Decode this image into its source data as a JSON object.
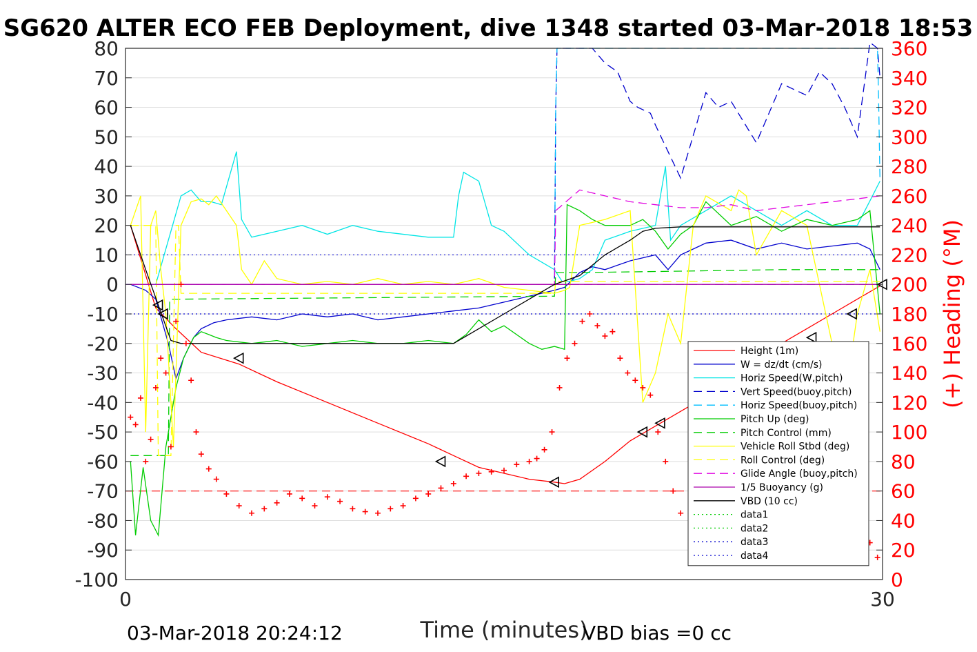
{
  "colors": {
    "height": "#ff0000",
    "w": "#0000cd",
    "horiz": "#00e5e5",
    "vert_buoy": "#0000cd",
    "horiz_buoy": "#00bfff",
    "pitch": "#00cc00",
    "pitch_ctrl": "#00cc00",
    "roll": "#ffff00",
    "roll_ctrl": "#ffff00",
    "glide": "#e000e0",
    "buoyancy": "#aa00aa",
    "vbd": "#000000",
    "heading": "#ff0000",
    "grid": "#dedede"
  },
  "chart_data": {
    "type": "line",
    "title": "SG620 ALTER ECO FEB Deployment, dive 1348 started 03-Mar-2018 18:53",
    "xlabel": "Time (minutes)",
    "ylabel_right": "(+) Heading (°M)",
    "xlim": [
      0,
      30
    ],
    "ylim": [
      -100,
      80
    ],
    "ylim_right": [
      0,
      360
    ],
    "xticks": [
      "0",
      "30"
    ],
    "yticks": [
      "80",
      "70",
      "60",
      "50",
      "40",
      "30",
      "20",
      "10",
      "0",
      "-10",
      "-20",
      "-30",
      "-40",
      "-50",
      "-60",
      "-70",
      "-80",
      "-90",
      "-100"
    ],
    "yticks_right": [
      "360",
      "340",
      "320",
      "300",
      "280",
      "260",
      "240",
      "220",
      "200",
      "180",
      "160",
      "140",
      "120",
      "100",
      "80",
      "60",
      "40",
      "20",
      "0"
    ],
    "grid": true,
    "legend_position": "bottom-right",
    "footer_left": "03-Mar-2018 20:24:12",
    "footer_right": "VBD bias =0 cc",
    "legend": [
      {
        "key": "height",
        "label": "Height (1m)",
        "style": "solid"
      },
      {
        "key": "w",
        "label": "W = dz/dt (cm/s)",
        "style": "solid"
      },
      {
        "key": "horiz",
        "label": "Horiz Speed(W,pitch)",
        "style": "solid"
      },
      {
        "key": "vert_buoy",
        "label": "Vert Speed(buoy,pitch)",
        "style": "dashed"
      },
      {
        "key": "horiz_buoy",
        "label": "Horiz Speed(buoy,pitch)",
        "style": "dashed"
      },
      {
        "key": "pitch",
        "label": "Pitch Up (deg)",
        "style": "solid"
      },
      {
        "key": "pitch_ctrl",
        "label": "Pitch Control (mm)",
        "style": "dashed"
      },
      {
        "key": "roll",
        "label": "Vehicle Roll Stbd (deg)",
        "style": "solid"
      },
      {
        "key": "roll_ctrl",
        "label": "Roll Control (deg)",
        "style": "dashed"
      },
      {
        "key": "glide",
        "label": "Glide Angle (buoy,pitch)",
        "style": "dashed"
      },
      {
        "key": "buoyancy",
        "label": "1/5 Buoyancy (g)",
        "style": "solid"
      },
      {
        "key": "vbd",
        "label": "VBD (10 cc)",
        "style": "solid"
      },
      {
        "key": "data1",
        "label": "data1",
        "style": "dotted",
        "color": "#00cc00"
      },
      {
        "key": "data2",
        "label": "data2",
        "style": "dotted",
        "color": "#00cc00"
      },
      {
        "key": "data3",
        "label": "data3",
        "style": "dotted",
        "color": "#0000cd"
      },
      {
        "key": "data4",
        "label": "data4",
        "style": "dotted",
        "color": "#0000cd"
      }
    ],
    "series": [
      {
        "key": "height",
        "style": "solid",
        "x": [
          0.2,
          1.2,
          2.0,
          3.0,
          4.5,
          6,
          8,
          10,
          12,
          13,
          14,
          15,
          16,
          17,
          17.4,
          18,
          19,
          20,
          21,
          22,
          23,
          24,
          25,
          26,
          27,
          28,
          29,
          29.9
        ],
        "y": [
          20,
          -8,
          -15,
          -23,
          -27,
          -33,
          -40,
          -47,
          -54,
          -58,
          -62,
          -64,
          -66,
          -67,
          -67.5,
          -66,
          -60,
          -53,
          -48,
          -43,
          -38,
          -33,
          -27,
          -20,
          -15,
          -10,
          -5,
          -0.5
        ]
      },
      {
        "key": "w",
        "style": "solid",
        "x": [
          0.2,
          0.8,
          1.2,
          1.7,
          2.0,
          2.3,
          2.7,
          3,
          3.5,
          4,
          5,
          6,
          7,
          8,
          9,
          10,
          11,
          12,
          13,
          14,
          15,
          16,
          17,
          17.4,
          18,
          18.5,
          19,
          20,
          21,
          21.5,
          22,
          23,
          24,
          25,
          26,
          27,
          28,
          29,
          29.5,
          29.9
        ],
        "y": [
          0,
          -2,
          -5,
          -20,
          -32,
          -25,
          -18,
          -15,
          -13,
          -12,
          -11,
          -12,
          -10,
          -11,
          -10,
          -12,
          -11,
          -10,
          -9,
          -8,
          -6,
          -4,
          -2,
          -1,
          4,
          6,
          5,
          8,
          10,
          5,
          10,
          14,
          15,
          12,
          14,
          12,
          13,
          14,
          12,
          5
        ]
      },
      {
        "key": "horiz",
        "style": "solid",
        "x": [
          0.2,
          1.2,
          1.7,
          2.2,
          2.6,
          3,
          3.4,
          3.8,
          4.4,
          4.6,
          5,
          6,
          7,
          8,
          9,
          10,
          12,
          13,
          13.2,
          13.4,
          14,
          14.5,
          15,
          16,
          17,
          17.3,
          17.6,
          18,
          18.5,
          19,
          20,
          21,
          21.4,
          21.6,
          22,
          23,
          24,
          25,
          26,
          27,
          28,
          29,
          29.3,
          29.6,
          29.9
        ],
        "y": [
          0,
          0,
          15,
          30,
          32,
          28,
          28,
          27,
          45,
          22,
          16,
          18,
          20,
          17,
          20,
          18,
          16,
          16,
          30,
          38,
          35,
          20,
          18,
          10,
          5,
          1,
          1,
          2,
          5,
          15,
          18,
          20,
          40,
          15,
          20,
          25,
          30,
          25,
          20,
          25,
          20,
          20,
          25,
          30,
          35
        ]
      },
      {
        "key": "vert_buoy",
        "style": "dashed",
        "x": [
          17,
          17.05,
          17.1,
          18,
          18.5,
          19,
          19.5,
          20,
          20.3,
          20.8,
          21,
          21.5,
          22,
          23,
          23.5,
          24,
          24.5,
          25,
          26,
          27,
          27.5,
          28,
          28.5,
          29,
          29.5,
          29.8,
          29.9
        ],
        "y": [
          2,
          60,
          80,
          80,
          80,
          75,
          72,
          62,
          60,
          58,
          54,
          45,
          36,
          65,
          60,
          62,
          55,
          48,
          68,
          64,
          72,
          68,
          60,
          50,
          82,
          80,
          70
        ]
      },
      {
        "key": "horiz_buoy",
        "style": "dashed",
        "x": [
          17,
          17.05,
          17.1,
          18,
          29.8,
          29.85,
          29.9
        ],
        "y": [
          3,
          60,
          80,
          80,
          80,
          60,
          35
        ]
      },
      {
        "key": "pitch",
        "style": "solid",
        "x": [
          0.2,
          0.4,
          0.7,
          1,
          1.3,
          1.6,
          2,
          2.3,
          2.7,
          3,
          3.3,
          3.6,
          4,
          5,
          6,
          7,
          8,
          9,
          10,
          11,
          12,
          13,
          13.5,
          14,
          14.5,
          15,
          16,
          16.5,
          17,
          17.4,
          17.5,
          18,
          18.5,
          19,
          20,
          20.5,
          21,
          21.5,
          22,
          22.5,
          23,
          24,
          25,
          26,
          27,
          28,
          29,
          29.5,
          29.9
        ],
        "y": [
          -60,
          -85,
          -62,
          -80,
          -85,
          -55,
          -35,
          -25,
          -18,
          -16,
          -17,
          -18,
          -19,
          -20,
          -19,
          -21,
          -20,
          -19,
          -20,
          -20,
          -19,
          -20,
          -17,
          -12,
          -16,
          -14,
          -20,
          -22,
          -21,
          -22,
          27,
          25,
          22,
          20,
          20,
          22,
          18,
          12,
          17,
          20,
          28,
          20,
          23,
          18,
          22,
          20,
          22,
          25,
          -10
        ]
      },
      {
        "key": "pitch_ctrl",
        "style": "dashed",
        "x": [
          0.2,
          1.7,
          1.75,
          2.2,
          17,
          17.05,
          18,
          22,
          26,
          29.9
        ],
        "y": [
          -58,
          -58,
          -5,
          -5,
          -4,
          4,
          4,
          4.5,
          5,
          5
        ]
      },
      {
        "key": "roll",
        "style": "solid",
        "x": [
          0.2,
          0.6,
          0.8,
          1,
          1.2,
          1.4,
          1.6,
          1.9,
          2.2,
          2.6,
          3,
          3.3,
          3.6,
          4,
          4.4,
          4.6,
          5,
          5.5,
          6,
          7,
          8,
          9,
          10,
          11,
          12,
          13,
          14,
          15,
          16,
          17,
          17.4,
          17.6,
          18,
          19,
          20,
          20.5,
          21,
          21.5,
          22,
          22.5,
          23,
          24,
          24.3,
          24.6,
          25,
          26,
          27,
          28,
          28.5,
          29,
          29.5,
          29.9
        ],
        "y": [
          20,
          30,
          -50,
          20,
          25,
          5,
          -10,
          -55,
          20,
          28,
          29,
          27,
          30,
          25,
          20,
          5,
          0,
          8,
          2,
          0,
          1,
          0,
          2,
          0,
          1,
          0,
          2,
          -1,
          -2,
          -3,
          -2,
          -1,
          20,
          22,
          25,
          -40,
          -30,
          -10,
          -20,
          20,
          30,
          25,
          32,
          30,
          10,
          25,
          20,
          -20,
          -40,
          -10,
          5,
          -16
        ]
      },
      {
        "key": "roll_ctrl",
        "style": "dashed",
        "x": [
          0.2,
          1.2,
          1.3,
          1.8,
          2.0,
          2.1,
          2.2,
          17,
          17.05,
          18,
          29.9
        ],
        "y": [
          20,
          20,
          -58,
          -58,
          20,
          20,
          -3,
          -3,
          1,
          1,
          1
        ]
      },
      {
        "key": "glide",
        "style": "dashed",
        "x": [
          0.2,
          17,
          17.05,
          18,
          19,
          20,
          21,
          22,
          23,
          24,
          25,
          26,
          27,
          28,
          29,
          29.9
        ],
        "y": [
          0,
          0,
          25,
          32,
          30,
          28,
          27,
          26,
          26,
          27,
          25,
          26,
          27,
          28,
          29,
          30
        ]
      },
      {
        "key": "buoyancy",
        "style": "solid",
        "x": [
          0.2,
          17,
          17.05,
          18,
          29.9
        ],
        "y": [
          0,
          0,
          0,
          0,
          0
        ]
      },
      {
        "key": "vbd",
        "style": "solid",
        "x": [
          0.2,
          0.8,
          1.8,
          2.2,
          3,
          4,
          5,
          8,
          10,
          12,
          13,
          14,
          15,
          16,
          17,
          18,
          19,
          20,
          20.5,
          21,
          22,
          25,
          28,
          29.9
        ],
        "y": [
          20,
          5,
          -19,
          -20,
          -20,
          -20,
          -20,
          -20,
          -20,
          -20,
          -20,
          -15,
          -10,
          -5,
          0,
          3,
          10,
          15,
          18,
          19,
          19.5,
          19.5,
          19.5,
          19.5
        ]
      }
    ],
    "hlines": [
      {
        "y": 10,
        "style": "dotted",
        "color": "#0000cd"
      },
      {
        "y": -10,
        "style": "dotted",
        "color": "#0000cd"
      },
      {
        "y": 0,
        "style": "dashed",
        "color": "#8a2be2"
      },
      {
        "y_right": 60,
        "style": "dashed",
        "color": "#ff0000"
      }
    ],
    "markers": [
      {
        "x": 1.3,
        "y": -7
      },
      {
        "x": 1.5,
        "y": -10
      },
      {
        "x": 4.5,
        "y": -25
      },
      {
        "x": 12.5,
        "y": -60
      },
      {
        "x": 17,
        "y": -67
      },
      {
        "x": 20.5,
        "y": -50
      },
      {
        "x": 21.2,
        "y": -47
      },
      {
        "x": 23.8,
        "y": -36
      },
      {
        "x": 25,
        "y": -30
      },
      {
        "x": 27.2,
        "y": -18
      },
      {
        "x": 28.8,
        "y": -10
      },
      {
        "x": 30,
        "y": 0
      }
    ],
    "heading": {
      "x": [
        0.2,
        0.4,
        0.6,
        0.8,
        1,
        1.2,
        1.4,
        1.6,
        1.8,
        2,
        2.2,
        2.4,
        2.6,
        2.8,
        3,
        3.3,
        3.6,
        4,
        4.5,
        5,
        5.5,
        6,
        6.5,
        7,
        7.5,
        8,
        8.5,
        9,
        9.5,
        10,
        10.5,
        11,
        11.5,
        12,
        12.5,
        13,
        13.5,
        14,
        14.5,
        15,
        15.5,
        16,
        16.3,
        16.6,
        16.9,
        17.2,
        17.5,
        17.8,
        18.1,
        18.4,
        18.7,
        19,
        19.3,
        19.6,
        19.9,
        20.2,
        20.5,
        20.8,
        21.1,
        21.4,
        21.7,
        22,
        22.5,
        23,
        23.5,
        24,
        24.5,
        25,
        25.3,
        25.6,
        25.9,
        26.2,
        26.5,
        26.8,
        27.1,
        27.4,
        27.7,
        28,
        28.3,
        28.6,
        28.9,
        29.2,
        29.5,
        29.8
      ],
      "y": [
        110,
        105,
        123,
        80,
        95,
        130,
        150,
        140,
        90,
        175,
        200,
        160,
        135,
        100,
        85,
        75,
        68,
        58,
        50,
        45,
        48,
        52,
        58,
        55,
        50,
        56,
        53,
        48,
        46,
        45,
        48,
        50,
        55,
        58,
        62,
        65,
        70,
        72,
        73,
        74,
        78,
        80,
        82,
        88,
        100,
        130,
        150,
        160,
        175,
        180,
        172,
        165,
        168,
        150,
        140,
        135,
        130,
        125,
        100,
        80,
        60,
        45,
        35,
        30,
        28,
        35,
        40,
        50,
        70,
        100,
        110,
        115,
        120,
        130,
        140,
        145,
        135,
        110,
        90,
        75,
        60,
        40,
        25,
        15
      ]
    }
  }
}
